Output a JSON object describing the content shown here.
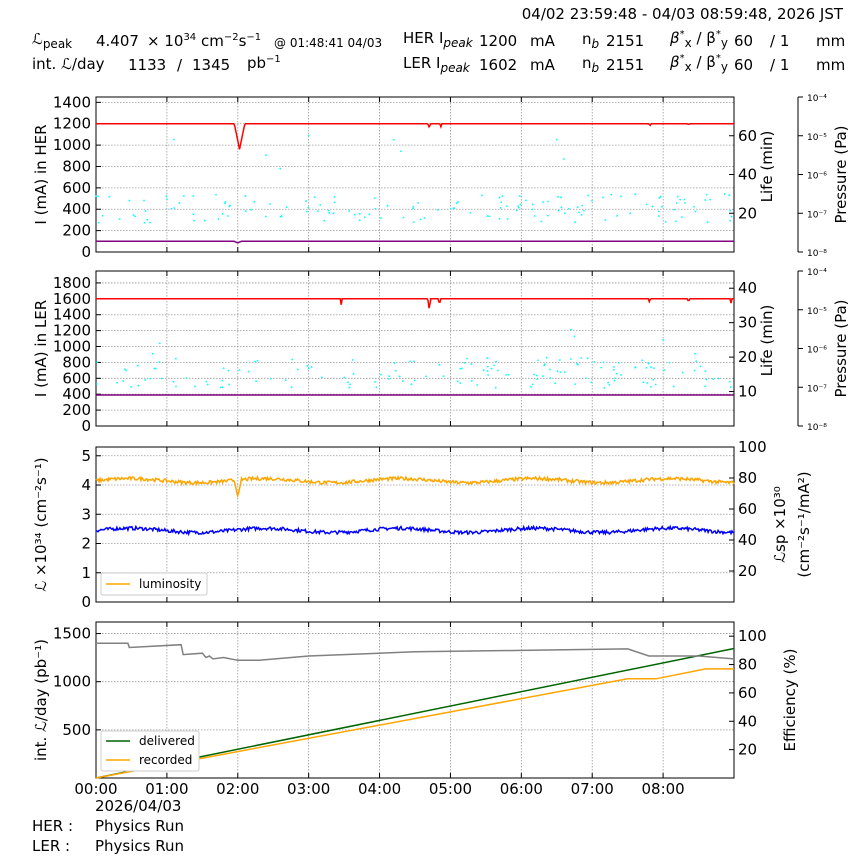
{
  "header": {
    "date_range": "04/02 23:59:48 - 04/03 08:59:48, 2026 JST",
    "lpeak_label": "ℒ",
    "lpeak_sub": "peak",
    "lpeak_value": "4.407",
    "lpeak_times": "× 10",
    "lpeak_exp": "34",
    "lpeak_unit": "cm",
    "lpeak_unit_exp1": "−2",
    "lpeak_unit_s": "s",
    "lpeak_unit_exp2": "−1",
    "lpeak_time": "@ 01:48:41 04/03",
    "intl_label": "int. ℒ/day",
    "intl_value": "1133",
    "intl_sep": "/",
    "intl_value2": "1345",
    "intl_unit": "pb",
    "intl_unit_exp": "−1",
    "her_label": "HER I",
    "her_sub": "peak",
    "her_value": "1200",
    "ler_label": "LER I",
    "ler_sub": "peak",
    "ler_value": "1602",
    "current_unit": "mA",
    "nb_label": "n",
    "nb_sub": "b",
    "nb_her": "2151",
    "nb_ler": "2151",
    "beta_label": "β",
    "beta_x": "x",
    "beta_sep": "/ β",
    "beta_y": "y",
    "beta_star": "*",
    "beta_x_val": "60",
    "beta_y_val": "/ 1",
    "beta_unit": "mm"
  },
  "footer": {
    "date": "2026/04/03",
    "her_label": "HER :",
    "her_mode": "Physics Run",
    "ler_label": "LER :",
    "ler_mode": "Physics Run"
  },
  "colors": {
    "current": "#ff0000",
    "life": "#00ffff",
    "pressure": "#800080",
    "luminosity": "#ffa500",
    "specific": "#0000ff",
    "delivered": "#006400",
    "recorded": "#ffa500",
    "efficiency": "#808080"
  },
  "chart_data": [
    {
      "type": "line",
      "panel": "HER",
      "xlabel": "",
      "xticks": [
        "00:00",
        "01:00",
        "02:00",
        "03:00",
        "04:00",
        "05:00",
        "06:00",
        "07:00",
        "08:00"
      ],
      "xlim": [
        0,
        9
      ],
      "ylabel": "I (mA) in HER",
      "ylim": [
        0,
        1450
      ],
      "yticks": [
        0,
        200,
        400,
        600,
        800,
        1000,
        1200,
        1400
      ],
      "y2label": "Life (min)",
      "y2lim": [
        0,
        80
      ],
      "y2ticks": [
        20,
        40,
        60
      ],
      "y3label": "Pressure (Pa)",
      "y3log": true,
      "y3ticks": [
        "10⁻⁸",
        "10⁻⁷",
        "10⁻⁶",
        "10⁻⁵",
        "10⁻⁴"
      ],
      "series": [
        {
          "role": "current",
          "baseline": 1200,
          "dips": [
            [
              1.95,
              2.1,
              960
            ],
            [
              4.68,
              4.72,
              1165
            ],
            [
              4.85,
              4.88,
              1170
            ],
            [
              7.8,
              7.83,
              1180
            ],
            [
              8.35,
              8.37,
              1185
            ]
          ]
        },
        {
          "role": "life",
          "scatter_range": [
            15,
            30
          ],
          "outliers": [
            [
              1.1,
              58
            ],
            [
              3.0,
              60
            ],
            [
              4.2,
              58
            ],
            [
              4.3,
              52
            ],
            [
              6.5,
              58
            ],
            [
              6.6,
              48
            ],
            [
              2.6,
              43
            ],
            [
              2.4,
              50
            ]
          ]
        },
        {
          "role": "pressure",
          "level_ylim": 100,
          "dips": [
            [
              1.95,
              2.05,
              85
            ]
          ]
        }
      ]
    },
    {
      "type": "line",
      "panel": "LER",
      "xlim": [
        0,
        9
      ],
      "ylabel": "I (mA) in LER",
      "ylim": [
        0,
        1950
      ],
      "yticks": [
        0,
        200,
        400,
        600,
        800,
        1000,
        1200,
        1400,
        1600,
        1800
      ],
      "y2label": "Life (min)",
      "y2lim": [
        0,
        45
      ],
      "y2ticks": [
        10,
        20,
        30,
        40
      ],
      "y3label": "Pressure (Pa)",
      "y3log": true,
      "y3ticks": [
        "10⁻⁸",
        "10⁻⁷",
        "10⁻⁶",
        "10⁻⁵",
        "10⁻⁴"
      ],
      "series": [
        {
          "role": "current",
          "baseline": 1602,
          "dips": [
            [
              3.45,
              3.47,
              1520
            ],
            [
              4.68,
              4.72,
              1460
            ],
            [
              4.83,
              4.86,
              1520
            ],
            [
              7.8,
              7.82,
              1520
            ],
            [
              8.35,
              8.37,
              1530
            ],
            [
              8.95,
              8.97,
              1530
            ]
          ]
        },
        {
          "role": "life",
          "scatter_range": [
            11,
            20
          ],
          "outliers": [
            [
              0.8,
              21
            ],
            [
              0.9,
              24
            ],
            [
              6.7,
              28
            ],
            [
              6.75,
              26
            ],
            [
              8.0,
              25
            ],
            [
              8.45,
              21
            ]
          ]
        },
        {
          "role": "pressure",
          "level": 390
        }
      ]
    },
    {
      "type": "line",
      "panel": "Luminosity",
      "xlim": [
        0,
        9
      ],
      "ylabel": "ℒ ×10³⁴ (cm⁻²s⁻¹)",
      "ylim": [
        0,
        5.3
      ],
      "yticks": [
        0,
        1,
        2,
        3,
        4,
        5
      ],
      "y2label": "ℒsp ×10³⁰ (cm⁻²s⁻¹/mA²)",
      "y2lim": [
        0,
        100
      ],
      "y2ticks": [
        20,
        40,
        60,
        80,
        100
      ],
      "legend": [
        "luminosity"
      ],
      "legend_position": "lower-left",
      "series": [
        {
          "name": "luminosity",
          "role": "luminosity",
          "baseline": 4.15,
          "dips": [
            [
              1.95,
              2.05,
              3.6
            ]
          ]
        },
        {
          "role": "specific",
          "baseline": 2.45
        }
      ]
    },
    {
      "type": "line",
      "panel": "Integrated",
      "xlim": [
        0,
        9
      ],
      "ylabel": "int. ℒ/day (pb⁻¹)",
      "ylim": [
        0,
        1620
      ],
      "yticks": [
        500,
        1000,
        1500
      ],
      "y2label": "Efficiency (%)",
      "y2lim": [
        0,
        110
      ],
      "y2ticks": [
        20,
        40,
        60,
        80,
        100
      ],
      "legend": [
        "delivered",
        "recorded"
      ],
      "legend_position": "lower-left",
      "series": [
        {
          "name": "delivered",
          "role": "delivered",
          "x": [
            0,
            9
          ],
          "y": [
            0,
            1345
          ]
        },
        {
          "name": "recorded",
          "role": "recorded",
          "x": [
            0,
            7.5,
            7.9,
            8.6,
            9
          ],
          "y": [
            0,
            1030,
            1030,
            1133,
            1133
          ]
        },
        {
          "role": "efficiency",
          "x": [
            0,
            0.45,
            0.47,
            1.2,
            1.23,
            1.5,
            1.55,
            1.6,
            1.65,
            1.8,
            2.0,
            2.3,
            3.0,
            4.5,
            6.0,
            7.5,
            7.8,
            8.5,
            9.0
          ],
          "y": [
            95,
            95,
            92,
            94,
            87,
            88,
            85,
            86,
            84,
            85,
            83,
            83,
            86,
            89,
            90,
            91,
            86,
            86,
            84
          ]
        }
      ]
    }
  ]
}
